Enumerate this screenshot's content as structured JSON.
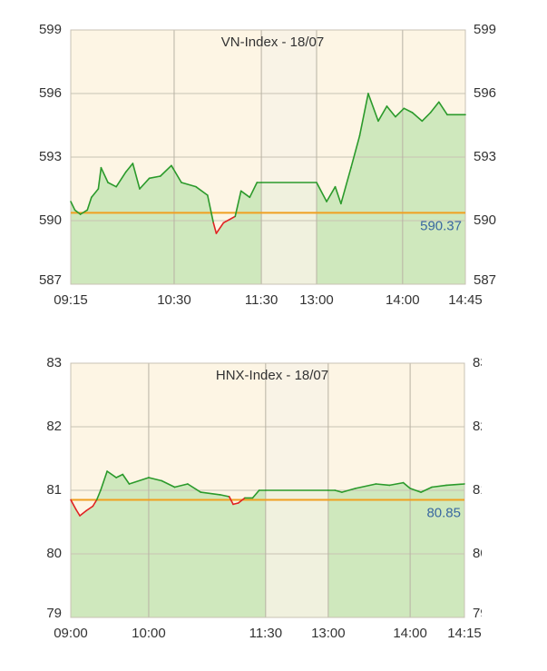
{
  "chart_data": [
    {
      "type": "line",
      "title": "VN-Index - 18/07",
      "x": [
        "09:15",
        "09:18",
        "09:22",
        "09:27",
        "09:30",
        "09:35",
        "09:37",
        "09:42",
        "09:48",
        "09:55",
        "10:00",
        "10:05",
        "10:12",
        "10:20",
        "10:28",
        "10:35",
        "10:45",
        "10:53",
        "10:57",
        "10:59",
        "11:04",
        "11:12",
        "11:16",
        "11:22",
        "11:27",
        "11:30",
        "13:00",
        "13:07",
        "13:13",
        "13:17",
        "13:24",
        "13:30",
        "13:36",
        "13:43",
        "13:49",
        "13:55",
        "14:01",
        "14:07",
        "14:14",
        "14:20",
        "14:26",
        "14:32",
        "14:45"
      ],
      "values": [
        590.9,
        590.5,
        590.3,
        590.5,
        591.1,
        591.5,
        592.5,
        591.8,
        591.6,
        592.3,
        592.7,
        591.5,
        592.0,
        592.1,
        592.6,
        591.8,
        591.6,
        591.2,
        589.9,
        589.4,
        589.9,
        590.2,
        591.4,
        591.1,
        591.8,
        591.8,
        591.8,
        590.9,
        591.6,
        590.8,
        592.5,
        594.0,
        596.0,
        594.7,
        595.4,
        594.9,
        595.3,
        595.1,
        594.7,
        595.1,
        595.6,
        595.0,
        595.0
      ],
      "reference": 590.37,
      "ylim": [
        587,
        599
      ],
      "yticks": [
        587,
        590,
        593,
        596,
        599
      ],
      "xticks": [
        "09:15",
        "10:30",
        "11:30",
        "13:00",
        "14:00",
        "14:45"
      ],
      "up_color": "#2b9a2b",
      "down_color": "#e02222",
      "fill_color": "#cfe8bd",
      "reference_color": "#f0a020"
    },
    {
      "type": "line",
      "title": "HNX-Index - 18/07",
      "x": [
        "09:00",
        "09:04",
        "09:07",
        "09:12",
        "09:17",
        "09:20",
        "09:23",
        "09:28",
        "09:35",
        "09:40",
        "09:45",
        "10:00",
        "10:10",
        "10:20",
        "10:30",
        "10:40",
        "10:55",
        "11:02",
        "11:05",
        "11:09",
        "11:14",
        "11:20",
        "11:25",
        "11:30",
        "13:00",
        "13:05",
        "13:10",
        "13:20",
        "13:35",
        "13:45",
        "13:55",
        "14:00",
        "14:03",
        "14:06",
        "14:10",
        "14:15"
      ],
      "values": [
        80.85,
        80.7,
        80.6,
        80.68,
        80.75,
        80.85,
        81.0,
        81.3,
        81.2,
        81.25,
        81.1,
        81.2,
        81.15,
        81.05,
        81.1,
        80.97,
        80.93,
        80.9,
        80.78,
        80.8,
        80.88,
        80.88,
        81.0,
        81.0,
        81.0,
        81.0,
        80.97,
        81.03,
        81.1,
        81.08,
        81.12,
        81.03,
        80.97,
        81.05,
        81.08,
        81.1
      ],
      "reference": 80.85,
      "ylim": [
        79,
        83
      ],
      "yticks": [
        79,
        80,
        81,
        82,
        83
      ],
      "xticks": [
        "09:00",
        "10:00",
        "11:30",
        "13:00",
        "14:00",
        "14:15"
      ],
      "up_color": "#2b9a2b",
      "down_color": "#e02222",
      "fill_color": "#cfe8bd",
      "reference_color": "#f0a020"
    }
  ]
}
